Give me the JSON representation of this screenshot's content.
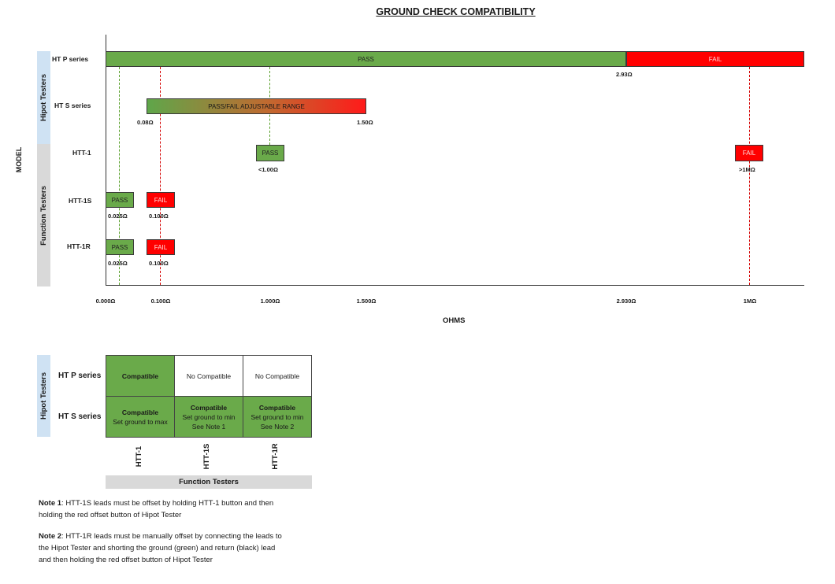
{
  "title": "GROUND CHECK COMPATIBILITY",
  "model_label": "MODEL",
  "x_axis_label": "OHMS",
  "groups": {
    "hipot": "Hipot Testers",
    "function": "Function Testers"
  },
  "rows": [
    "HT P series",
    "HT S series",
    "HTT-1",
    "HTT-1S",
    "HTT-1R"
  ],
  "chart_data": {
    "type": "range-bar",
    "title": "GROUND CHECK COMPATIBILITY",
    "xlabel": "OHMS",
    "ylabel": "MODEL",
    "x_ticks": [
      "0.000Ω",
      "0.100Ω",
      "1.000Ω",
      "1.500Ω",
      "2.930Ω",
      "1MΩ"
    ],
    "bars": [
      {
        "model": "HT P series",
        "label": "PASS",
        "from": "0.000Ω",
        "to": "2.930Ω",
        "status": "pass"
      },
      {
        "model": "HT P series",
        "label": "FAIL",
        "from": "2.930Ω",
        "to": ">1MΩ",
        "status": "fail"
      },
      {
        "model": "HT S series",
        "label": "PASS/FAIL ADJUSTABLE RANGE",
        "from": "0.080Ω",
        "to": "1.500Ω",
        "status": "adjustable"
      },
      {
        "model": "HTT-1",
        "label": "PASS",
        "at": "<1.000Ω",
        "status": "pass"
      },
      {
        "model": "HTT-1",
        "label": "FAIL",
        "at": ">1MΩ",
        "status": "fail"
      },
      {
        "model": "HTT-1S",
        "label": "PASS",
        "at": "0.025Ω",
        "status": "pass"
      },
      {
        "model": "HTT-1S",
        "label": "FAIL",
        "at": "0.100Ω",
        "status": "fail"
      },
      {
        "model": "HTT-1R",
        "label": "PASS",
        "at": "0.025Ω",
        "status": "pass"
      },
      {
        "model": "HTT-1R",
        "label": "FAIL",
        "at": "0.100Ω",
        "status": "fail"
      }
    ],
    "value_labels": {
      "htp_fail_start": "2.93Ω",
      "hts_start": "0.08Ω",
      "hts_end": "1.50Ω",
      "htt1_pass": "<1.00Ω",
      "htt1_fail": ">1MΩ",
      "htt1s_pass": "0.025Ω",
      "htt1s_fail": "0.100Ω",
      "htt1r_pass": "0.025Ω",
      "htt1r_fail": "0.100Ω"
    },
    "colors": {
      "pass": "#6aaa4a",
      "fail": "#ff0000",
      "hipot_group": "#cfe2f3",
      "function_group": "#d9d9d9"
    }
  },
  "compat_table": {
    "row_group": "Hipot Testers",
    "col_group": "Function Testers",
    "rows": [
      "HT P series",
      "HT S series"
    ],
    "cols": [
      "HTT-1",
      "HTT-1S",
      "HTT-1R"
    ],
    "cells": [
      [
        {
          "title": "Compatible",
          "sub": "",
          "sub2": ""
        },
        {
          "title": "",
          "sub": "No Compatible",
          "sub2": ""
        },
        {
          "title": "",
          "sub": "No Compatible",
          "sub2": ""
        }
      ],
      [
        {
          "title": "Compatible",
          "sub": "Set ground to max",
          "sub2": ""
        },
        {
          "title": "Compatible",
          "sub": "Set ground to min",
          "sub2": "See Note 1"
        },
        {
          "title": "Compatible",
          "sub": "Set ground to min",
          "sub2": "See Note 2"
        }
      ]
    ]
  },
  "notes": [
    {
      "label": "Note 1",
      "text": ": HTT-1S leads must be offset by holding HTT-1 button and then holding the red offset button of Hipot Tester"
    },
    {
      "label": "Note 2",
      "text": ": HTT-1R leads must be manually offset by connecting the leads to the Hipot Tester and shorting the ground (green) and return (black) lead and then holding the red offset button of Hipot Tester"
    }
  ]
}
